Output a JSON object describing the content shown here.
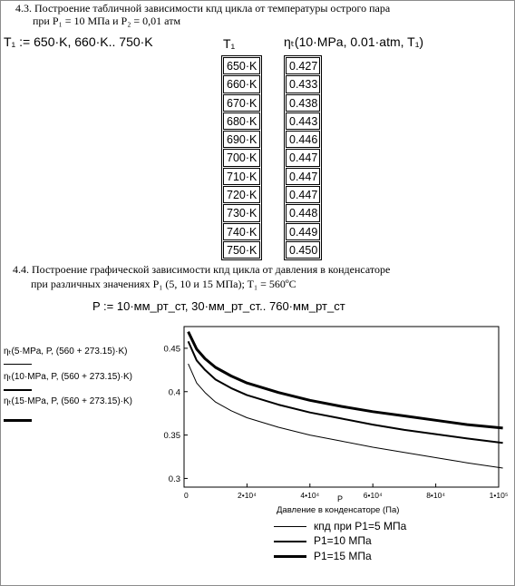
{
  "section_43": {
    "title": "4.3. Построение табличной зависимости кпд цикла от температуры острого пара",
    "subtitle": "при P₁ = 10 МПа и  P₂ = 0,01 атм",
    "t1_definition": "T₁ := 650·K, 660·K.. 750·K",
    "col_t1_header": "T₁",
    "col_eta_header": "ηₜ(10·MPa, 0.01·atm, T₁)",
    "t1_values": [
      "650·K",
      "660·K",
      "670·K",
      "680·K",
      "690·K",
      "700·K",
      "710·K",
      "720·K",
      "730·K",
      "740·K",
      "750·K"
    ],
    "eta_values": [
      "0.427",
      "0.433",
      "0.438",
      "0.443",
      "0.446",
      "0.447",
      "0.447",
      "0.447",
      "0.448",
      "0.449",
      "0.450"
    ]
  },
  "section_44": {
    "title": "4.4. Построение графической зависимости кпд цикла от давления в конденсаторе",
    "subtitle": "при различных значениях P₁ (5, 10 и 15 МПа); T₁ = 560ºC",
    "p_definition": "P := 10·мм_рт_ст, 30·мм_рт_ст.. 760·мм_рт_ст"
  },
  "y_labels": [
    "ηₜ(5·MPa, P, (560 + 273.15)·K)",
    "ηₜ(10·MPa, P, (560 + 273.15)·K)",
    "ηₜ(15·MPa, P, (560 + 273.15)·K)"
  ],
  "chart_data": {
    "type": "line",
    "xlabel": "Давление в конденсаторе (Па)",
    "x_var": "P",
    "xlim": [
      0,
      100000
    ],
    "ylim": [
      0.29,
      0.475
    ],
    "x_ticks": [
      0,
      20000,
      40000,
      60000,
      80000,
      100000
    ],
    "x_tick_labels": [
      "0",
      "2•10⁴",
      "4•10⁴",
      "6•10⁴",
      "8•10⁴",
      "1•10⁵"
    ],
    "y_ticks": [
      0.3,
      0.35,
      0.4,
      0.45
    ],
    "y_tick_labels": [
      "0.3",
      "0.35",
      "0.4",
      "0.45"
    ],
    "grid": false,
    "legend_position": "bottom",
    "series": [
      {
        "name": "кпд при P1=5 МПа",
        "stroke": 1,
        "x": [
          1333,
          4000,
          6666,
          10000,
          15000,
          20000,
          30000,
          40000,
          50000,
          60000,
          70000,
          80000,
          90000,
          101325
        ],
        "y": [
          0.432,
          0.41,
          0.399,
          0.388,
          0.378,
          0.37,
          0.359,
          0.35,
          0.343,
          0.336,
          0.33,
          0.324,
          0.318,
          0.312
        ]
      },
      {
        "name": "P1=10 МПа",
        "stroke": 2,
        "x": [
          1333,
          4000,
          6666,
          10000,
          15000,
          20000,
          30000,
          40000,
          50000,
          60000,
          70000,
          80000,
          90000,
          101325
        ],
        "y": [
          0.458,
          0.436,
          0.425,
          0.414,
          0.404,
          0.396,
          0.385,
          0.376,
          0.369,
          0.362,
          0.356,
          0.351,
          0.346,
          0.341
        ]
      },
      {
        "name": "P1=15 МПа",
        "stroke": 3,
        "x": [
          1333,
          4000,
          6666,
          10000,
          15000,
          20000,
          30000,
          40000,
          50000,
          60000,
          70000,
          80000,
          90000,
          101325
        ],
        "y": [
          0.469,
          0.449,
          0.438,
          0.428,
          0.418,
          0.41,
          0.399,
          0.39,
          0.383,
          0.377,
          0.372,
          0.367,
          0.362,
          0.358
        ]
      }
    ]
  }
}
